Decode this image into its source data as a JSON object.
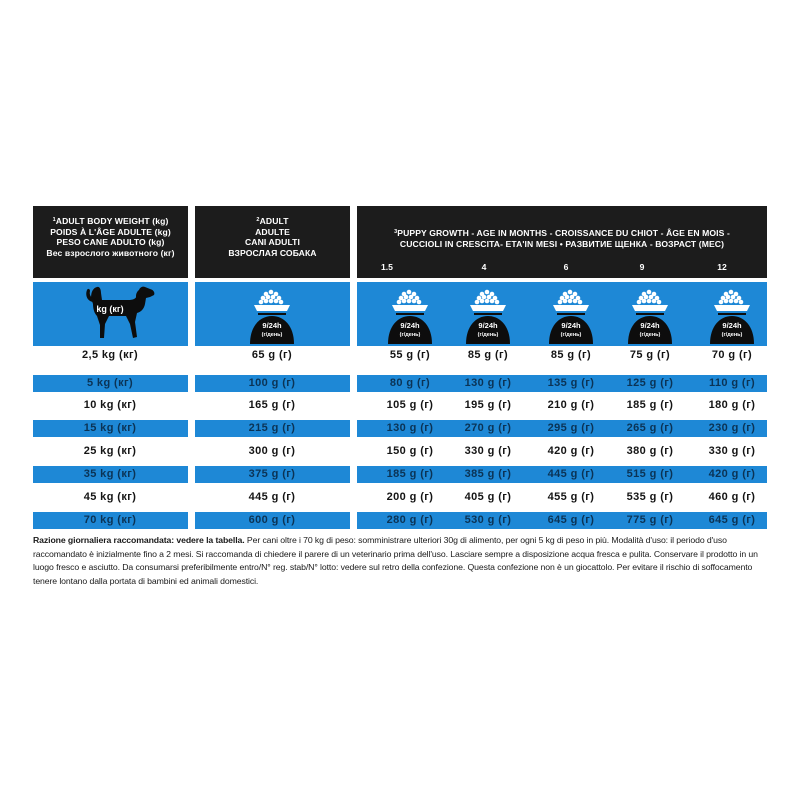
{
  "headers": {
    "col1": {
      "sup": "1",
      "lines": [
        "ADULT BODY WEIGHT (kg)",
        "POIDS À L'ÂGE ADULTE (kg)",
        "PESO CANE ADULTO (kg)",
        "Вес взрослого животного (кг)"
      ]
    },
    "col2": {
      "sup": "2",
      "lines": [
        "ADULT",
        "ADULTE",
        "CANI ADULTI",
        "ВЗРОСЛАЯ СОБАКА"
      ]
    },
    "col3": {
      "sup": "3",
      "line1": "PUPPY GROWTH - AGE IN MONTHS - CROISSANCE DU CHIOT - ÂGE EN MOIS -",
      "line2": "CUCCIOLI IN CRESCITA- ETA'IN MESI • РАЗВИТИЕ ЩЕНКА - ВОЗРАСТ (МЕС)",
      "ages": [
        "1.5",
        "4",
        "6",
        "9",
        "12"
      ]
    }
  },
  "dog_label": "kg (кг)",
  "bowl_label": {
    "top": "9/24h",
    "bottom": "(г/день)"
  },
  "rows": [
    {
      "weight": "2,5 kg (кг)",
      "adult": "65 g (г)",
      "puppy": [
        "55 g (г)",
        "85 g (г)",
        "85 g (г)",
        "75 g (г)",
        "70 g (г)"
      ]
    },
    {
      "weight": "5 kg (кг)",
      "adult": "100 g (г)",
      "puppy": [
        "80 g (г)",
        "130 g (г)",
        "135 g (г)",
        "125 g (г)",
        "110 g (г)"
      ]
    },
    {
      "weight": "10 kg (кг)",
      "adult": "165 g (г)",
      "puppy": [
        "105 g (г)",
        "195 g (г)",
        "210 g (г)",
        "185 g (г)",
        "180 g (г)"
      ]
    },
    {
      "weight": "15 kg (кг)",
      "adult": "215 g (г)",
      "puppy": [
        "130 g (г)",
        "270 g (г)",
        "295 g (г)",
        "265 g (г)",
        "230 g (г)"
      ]
    },
    {
      "weight": "25 kg (кг)",
      "adult": "300 g (г)",
      "puppy": [
        "150 g (г)",
        "330 g (г)",
        "420 g (г)",
        "380 g (г)",
        "330 g (г)"
      ]
    },
    {
      "weight": "35 kg (кг)",
      "adult": "375 g (г)",
      "puppy": [
        "185 g (г)",
        "385 g (г)",
        "445 g (г)",
        "515 g (г)",
        "420 g (г)"
      ]
    },
    {
      "weight": "45 kg (кг)",
      "adult": "445 g (г)",
      "puppy": [
        "200 g (г)",
        "405 g (г)",
        "455 g (г)",
        "535 g (г)",
        "460 g (г)"
      ]
    },
    {
      "weight": "70 kg (кг)",
      "adult": "600 g (г)",
      "puppy": [
        "280 g (г)",
        "530 g (г)",
        "645 g (г)",
        "775 g (г)",
        "645 g (г)"
      ]
    }
  ],
  "note": {
    "bold": "Razione giornaliera raccomandata: vedere la tabella.",
    "text": " Per cani oltre i 70 kg di peso: somministrare ulteriori 30g di alimento, per ogni 5 kg di peso in più. Modalità d'uso: il periodo d'uso raccomandato è inizialmente fino a 2 mesi. Si raccomanda di chiedere il parere di un veterinario prima dell'uso. Lasciare sempre a disposizione acqua fresca e pulita. Conservare il prodotto in un luogo fresco e asciutto. Da consumarsi preferibilmente entro/N° reg. stab/N° lotto: vedere sul retro della confezione. Questa confezione non è un giocattolo. Per evitare il rischio di soffocamento tenere lontano dalla portata di bambini ed animali domestici."
  },
  "colors": {
    "header": "#1c1c1c",
    "accent_blue": "#1e88d6",
    "blue_row_text": "#0b3355"
  }
}
